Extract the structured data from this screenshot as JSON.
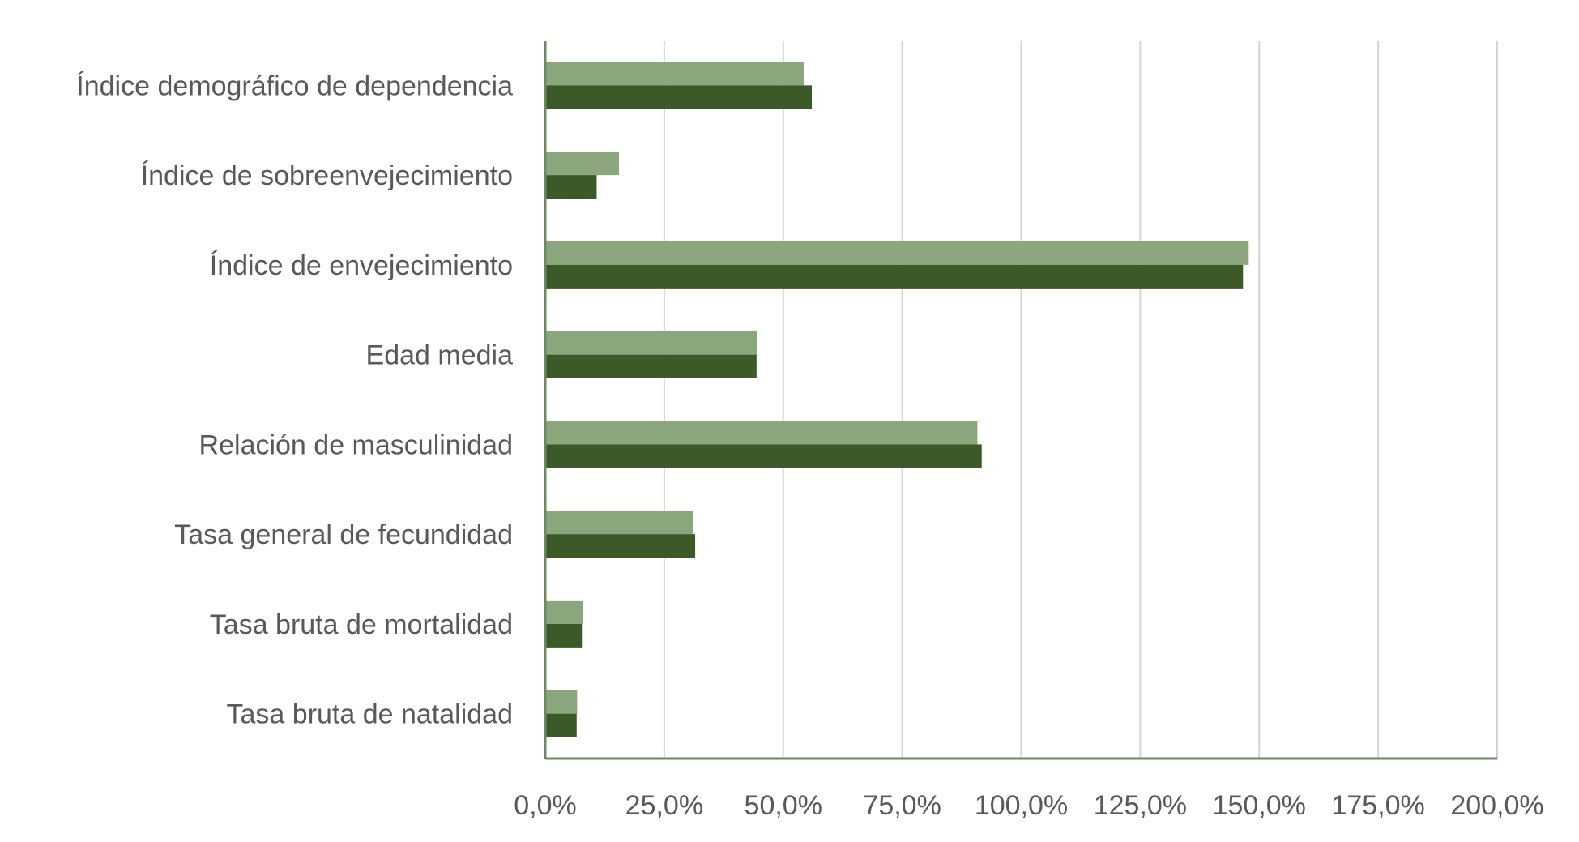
{
  "chart_data": {
    "type": "bar",
    "orientation": "horizontal",
    "categories": [
      "Índice demográfico de dependencia",
      "Índice de sobreenvejecimiento",
      "Índice de envejecimiento",
      "Edad media",
      "Relación de masculinidad",
      "Tasa general de fecundidad",
      "Tasa bruta de mortalidad",
      "Tasa bruta de natalidad"
    ],
    "series": [
      {
        "color": "#8ca67e",
        "values": [
          54.3,
          15.5,
          147.8,
          44.5,
          90.8,
          31.0,
          8.0,
          6.7
        ]
      },
      {
        "color": "#3c5a28",
        "values": [
          56.0,
          10.8,
          146.6,
          44.4,
          91.7,
          31.5,
          7.7,
          6.6
        ]
      }
    ],
    "xlim": [
      0,
      200
    ],
    "ticks": [
      "0,0%",
      "25,0%",
      "50,0%",
      "75,0%",
      "100,0%",
      "125,0%",
      "150,0%",
      "175,0%",
      "200,0%"
    ],
    "grid": true,
    "axis_color": "#6b8a5e",
    "grid_color": "#d4d4d4",
    "label_color": "#595959",
    "title": "",
    "xlabel": "",
    "ylabel": ""
  }
}
